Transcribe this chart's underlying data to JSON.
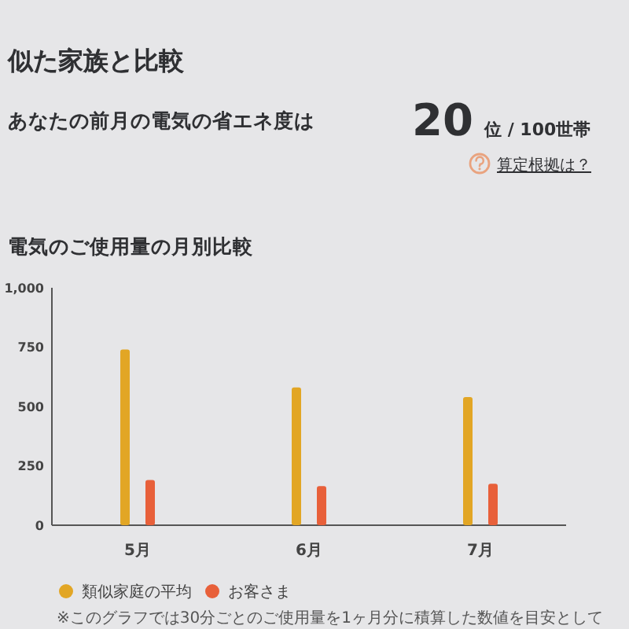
{
  "chart_data": [
    {
      "type": "other",
      "title": "似た家族と比較",
      "annotations": [
        "あなたの前月の電気の省エネ度は",
        "20",
        "位 / 100世帯",
        "算定根拠は？"
      ]
    },
    {
      "type": "bar",
      "title": "電気のご使用量の月別比較",
      "categories": [
        "5月",
        "6月",
        "7月"
      ],
      "series": [
        {
          "name": "類似家庭の平均",
          "color": "#e2a625",
          "values": [
            740,
            580,
            540
          ]
        },
        {
          "name": "お客さま",
          "color": "#e8603a",
          "values": [
            190,
            165,
            175
          ]
        }
      ],
      "ylim": [
        0,
        1000
      ],
      "yticks": [
        0,
        250,
        500,
        750,
        {
          "value": 1000,
          "label": "1,000"
        }
      ],
      "legend": "bottom",
      "annotations": [
        "※このグラフでは30分ごとのご使用量を1ヶ月分に積算した数値を目安として"
      ]
    }
  ]
}
